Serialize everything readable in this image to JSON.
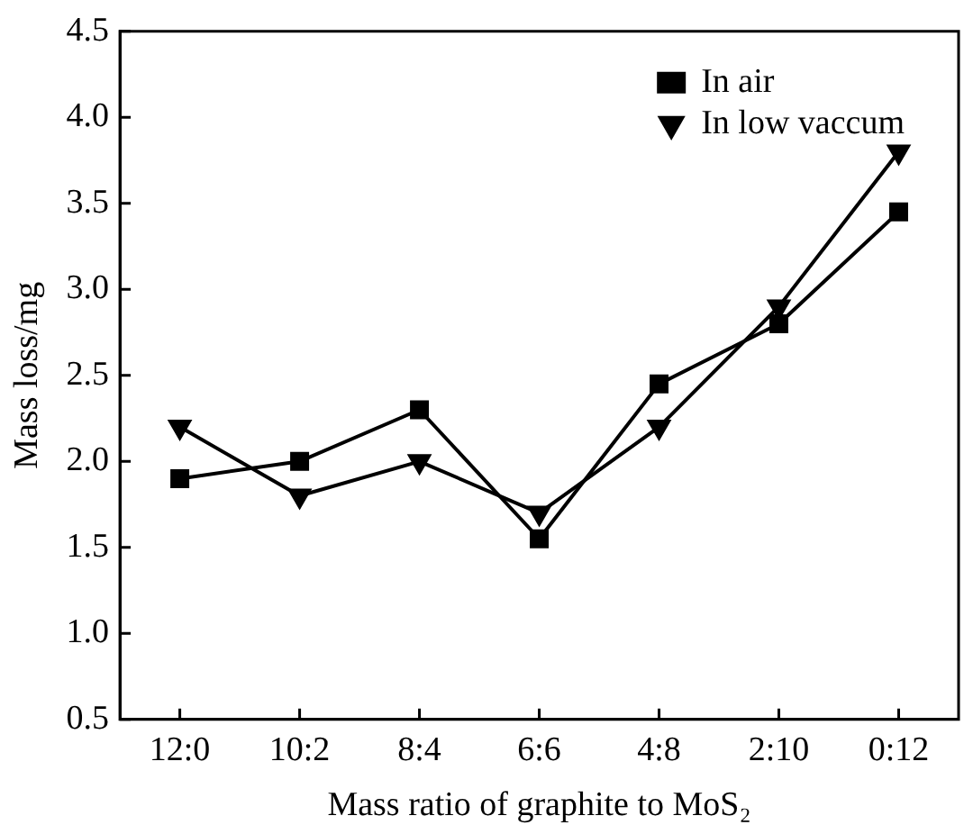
{
  "chart_data": {
    "type": "line",
    "xlabel": "Mass ratio of graphite to MoS₂",
    "ylabel": "Mass loss/mg",
    "categories": [
      "12:0",
      "10:2",
      "8:4",
      "6:6",
      "4:8",
      "2:10",
      "0:12"
    ],
    "series": [
      {
        "name": "In air",
        "color": "#000000",
        "marker": "square",
        "values": [
          1.9,
          2.0,
          2.3,
          1.55,
          2.45,
          2.8,
          3.45
        ]
      },
      {
        "name": "In low vaccum",
        "color": "#000000",
        "marker": "triangle",
        "values": [
          2.2,
          1.8,
          2.0,
          1.7,
          2.2,
          2.9,
          3.8
        ]
      }
    ],
    "ylim": [
      0.5,
      4.5
    ],
    "yticks": [
      {
        "value": 0.5,
        "label": "0.5"
      },
      {
        "value": 1,
        "label": "1.0"
      },
      {
        "value": 1.5,
        "label": "1.5"
      },
      {
        "value": 2,
        "label": "2.0"
      },
      {
        "value": 2.5,
        "label": "2.5"
      },
      {
        "value": 3,
        "label": "3.0"
      },
      {
        "value": 3.5,
        "label": "3.5"
      },
      {
        "value": 4,
        "label": "4.0"
      },
      {
        "value": 4.5,
        "label": "4.5"
      }
    ],
    "grid": false,
    "legend": "top right",
    "line_style": "solid"
  }
}
